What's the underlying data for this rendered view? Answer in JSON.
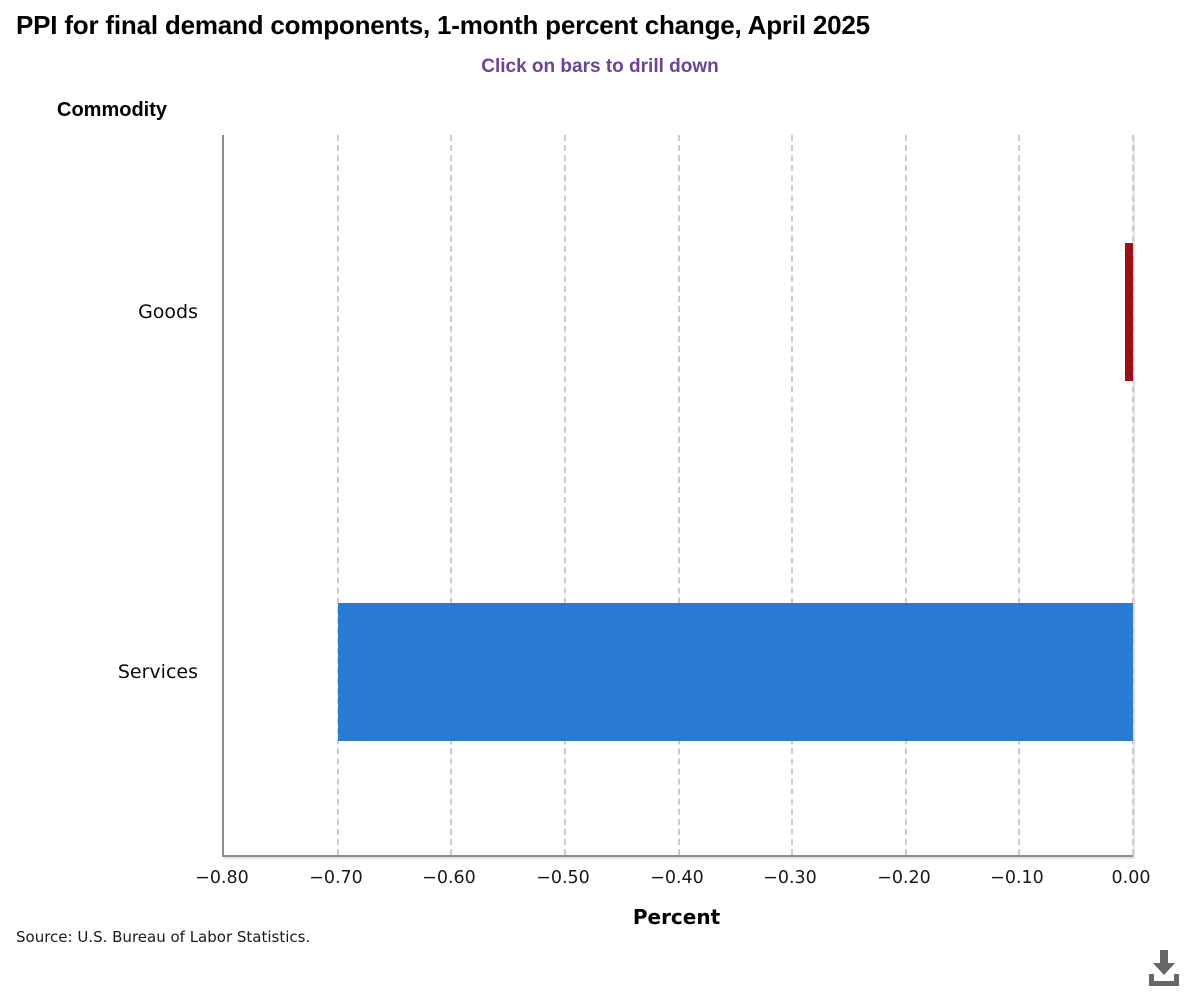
{
  "header": {
    "title": "PPI for final demand components, 1-month percent change, April 2025",
    "subtitle": "Click on bars to drill down"
  },
  "chart_data": {
    "type": "bar",
    "orientation": "horizontal",
    "title": "PPI for final demand components, 1-month percent change, April 2025",
    "subtitle": "Click on bars to drill down",
    "categories": [
      "Goods",
      "Services"
    ],
    "values": [
      0.0,
      -0.7
    ],
    "bar_colors": [
      "#9a1218",
      "#2b7bd4"
    ],
    "xlabel": "Percent",
    "ylabel": "Commodity",
    "xlim": [
      -0.8,
      0.0
    ],
    "xticks": [
      -0.8,
      -0.7,
      -0.6,
      -0.5,
      -0.4,
      -0.3,
      -0.2,
      -0.1,
      0.0
    ],
    "xtick_labels": [
      "−0.80",
      "−0.70",
      "−0.60",
      "−0.50",
      "−0.40",
      "−0.30",
      "−0.20",
      "−0.10",
      "0.00"
    ],
    "grid": "vertical-dashed",
    "legend": "none"
  },
  "footer": {
    "source": "Source: U.S. Bureau of Labor Statistics."
  },
  "icons": {
    "download": "download-icon"
  },
  "colors": {
    "subtitle_text": "#6d4397",
    "axis_line": "#8d8d8d",
    "gridline": "#cccccc",
    "goods_bar": "#9a1218",
    "services_bar": "#2b7bd4",
    "download_icon": "#676767"
  }
}
